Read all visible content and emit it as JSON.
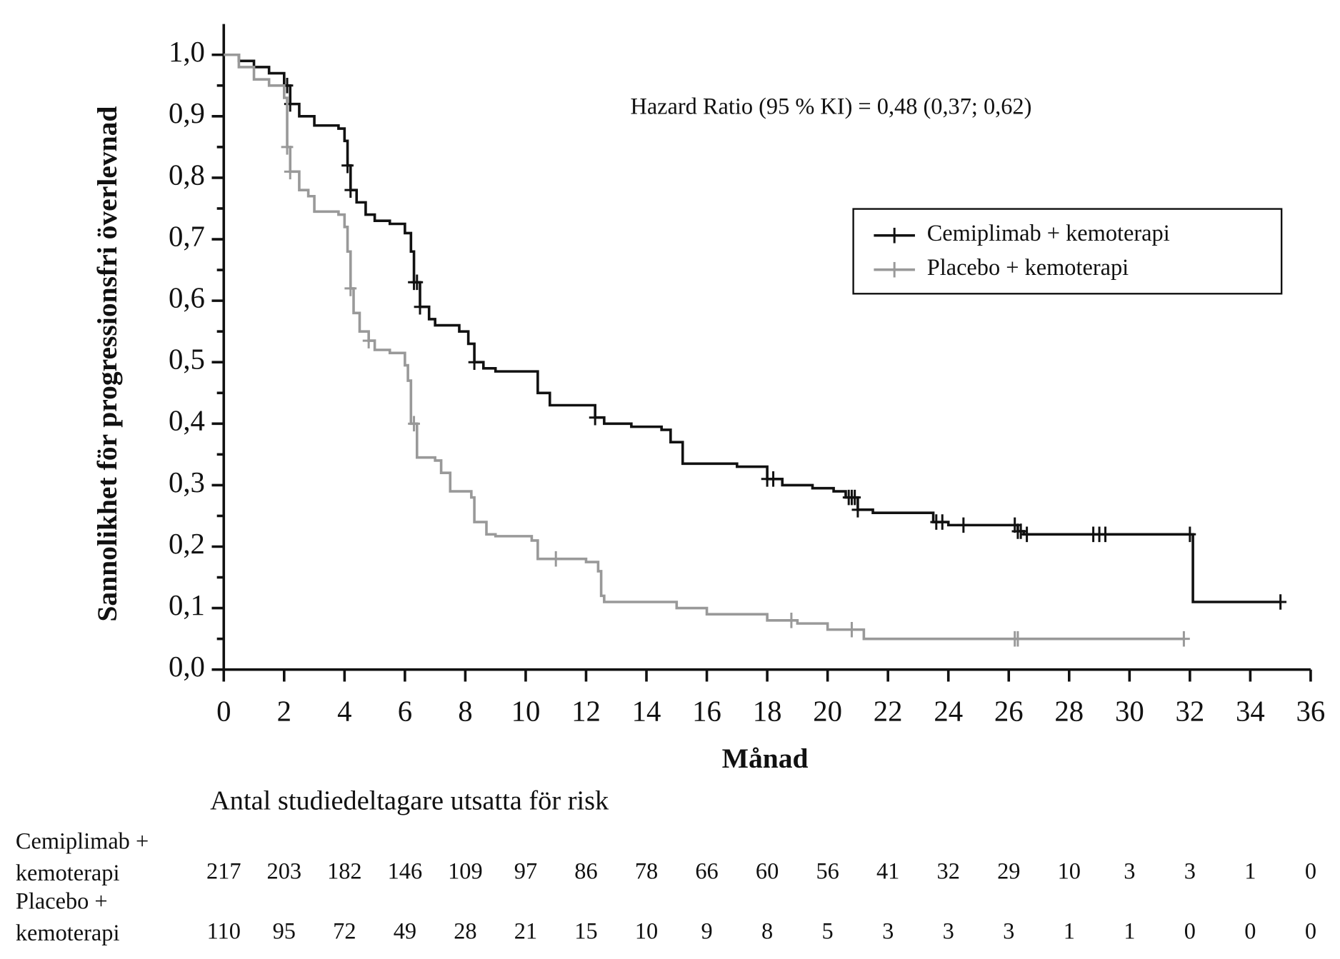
{
  "chart_data": {
    "type": "line",
    "step": true,
    "xlabel": "Månad",
    "ylabel": "Sannolikhet för progressionsfri överlevnad",
    "annotation": "Hazard Ratio (95 % KI) = 0,48 (0,37; 0,62)",
    "xlim": [
      0,
      36
    ],
    "ylim": [
      0,
      1
    ],
    "xticks": [
      0,
      2,
      4,
      6,
      8,
      10,
      12,
      14,
      16,
      18,
      20,
      22,
      24,
      26,
      28,
      30,
      32,
      34,
      36
    ],
    "yticks": [
      {
        "value": 0,
        "label": "0,0"
      },
      {
        "value": 0.1,
        "label": "0,1"
      },
      {
        "value": 0.2,
        "label": "0,2"
      },
      {
        "value": 0.3,
        "label": "0,3"
      },
      {
        "value": 0.4,
        "label": "0,4"
      },
      {
        "value": 0.5,
        "label": "0,5"
      },
      {
        "value": 0.6,
        "label": "0,6"
      },
      {
        "value": 0.7,
        "label": "0,7"
      },
      {
        "value": 0.8,
        "label": "0,8"
      },
      {
        "value": 0.9,
        "label": "0,9"
      },
      {
        "value": 1,
        "label": "1,0"
      }
    ],
    "legend": "upper right",
    "series": [
      {
        "name": "Cemiplimab + kemoterapi",
        "color": "#111111",
        "x": [
          0,
          0.5,
          1,
          1.5,
          2,
          2.2,
          2.5,
          3,
          3.8,
          4,
          4.1,
          4.2,
          4.4,
          4.7,
          5,
          5.5,
          6,
          6.2,
          6.3,
          6.5,
          6.8,
          7,
          7.8,
          8.1,
          8.3,
          8.6,
          9,
          10.2,
          10.4,
          10.8,
          12,
          12.3,
          12.6,
          13.5,
          14.5,
          14.8,
          15.2,
          17,
          18,
          18.5,
          19.5,
          20.2,
          20.6,
          21,
          21.5,
          23.5,
          24,
          26.3,
          26.5,
          32.1,
          35
        ],
        "values": [
          1.0,
          0.99,
          0.98,
          0.97,
          0.95,
          0.92,
          0.9,
          0.885,
          0.88,
          0.86,
          0.82,
          0.78,
          0.76,
          0.74,
          0.73,
          0.725,
          0.71,
          0.68,
          0.63,
          0.59,
          0.57,
          0.56,
          0.55,
          0.53,
          0.5,
          0.49,
          0.485,
          0.485,
          0.45,
          0.43,
          0.43,
          0.41,
          0.4,
          0.395,
          0.39,
          0.37,
          0.335,
          0.33,
          0.31,
          0.3,
          0.295,
          0.29,
          0.28,
          0.26,
          0.255,
          0.24,
          0.235,
          0.225,
          0.22,
          0.11,
          0.11
        ],
        "censored": [
          2.1,
          2.2,
          4.1,
          4.2,
          6.3,
          6.4,
          6.5,
          8.3,
          12.3,
          18,
          18.2,
          20.7,
          20.8,
          20.9,
          21,
          23.6,
          23.8,
          24.5,
          26.2,
          26.3,
          26.4,
          26.6,
          28.8,
          29,
          29.2,
          32,
          35
        ]
      },
      {
        "name": "Placebo + kemoterapi",
        "color": "#999999",
        "x": [
          0,
          0.5,
          1,
          1.5,
          2,
          2.1,
          2.2,
          2.5,
          2.8,
          3,
          3.8,
          4,
          4.1,
          4.2,
          4.3,
          4.5,
          4.8,
          5,
          5.5,
          6,
          6.1,
          6.2,
          6.4,
          7,
          7.2,
          7.5,
          8.2,
          8.3,
          8.7,
          9,
          10.2,
          10.4,
          12,
          12.4,
          12.5,
          12.6,
          15,
          16,
          18,
          19,
          20,
          21.2,
          31.8
        ],
        "values": [
          1.0,
          0.98,
          0.96,
          0.95,
          0.93,
          0.85,
          0.81,
          0.78,
          0.77,
          0.745,
          0.74,
          0.72,
          0.68,
          0.62,
          0.58,
          0.55,
          0.535,
          0.52,
          0.515,
          0.495,
          0.47,
          0.4,
          0.345,
          0.34,
          0.32,
          0.29,
          0.28,
          0.24,
          0.22,
          0.217,
          0.21,
          0.18,
          0.175,
          0.16,
          0.12,
          0.11,
          0.1,
          0.09,
          0.08,
          0.075,
          0.065,
          0.05,
          0.05
        ],
        "censored": [
          2.1,
          2.2,
          4.2,
          4.8,
          6.3,
          11,
          18.8,
          20.8,
          26.2,
          26.3,
          31.8
        ]
      }
    ],
    "risk_table": {
      "title": "Antal studiedeltagare utsatta för risk",
      "rows": [
        {
          "label": [
            "Cemiplimab +",
            "kemoterapi"
          ],
          "values": [
            217,
            203,
            182,
            146,
            109,
            97,
            86,
            78,
            66,
            60,
            56,
            41,
            32,
            29,
            10,
            3,
            3,
            1,
            0
          ]
        },
        {
          "label": [
            "Placebo +",
            "kemoterapi"
          ],
          "values": [
            110,
            95,
            72,
            49,
            28,
            21,
            15,
            10,
            9,
            8,
            5,
            3,
            3,
            3,
            1,
            1,
            0,
            0,
            0
          ]
        }
      ]
    }
  }
}
